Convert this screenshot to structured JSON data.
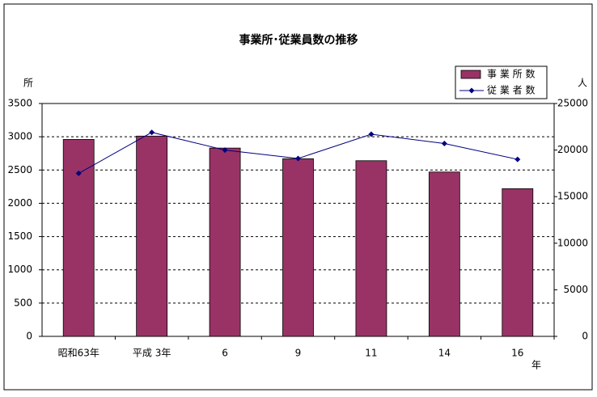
{
  "chart_data": {
    "type": "bar",
    "title": "事業所･従業員数の推移",
    "categories": [
      "昭和63年",
      "平成 3年",
      "6",
      "9",
      "11",
      "14",
      "16"
    ],
    "x_label": "年",
    "y_label": "所",
    "y2_label": "人",
    "series": [
      {
        "name": "事 業 所 数",
        "type": "bar",
        "color": "#993366",
        "values": [
          2960,
          3010,
          2830,
          2670,
          2640,
          2470,
          2220
        ]
      },
      {
        "name": "従 業 者 数",
        "type": "line",
        "axis": "y2",
        "color": "#000080",
        "values": [
          17500,
          21900,
          20000,
          19100,
          21700,
          20700,
          19000
        ]
      }
    ],
    "ylim": [
      0,
      3500
    ],
    "yticks": [
      0,
      500,
      1000,
      1500,
      2000,
      2500,
      3000,
      3500
    ],
    "y2lim": [
      0,
      25000
    ],
    "y2ticks": [
      0,
      5000,
      10000,
      15000,
      20000,
      25000
    ],
    "grid": true
  }
}
